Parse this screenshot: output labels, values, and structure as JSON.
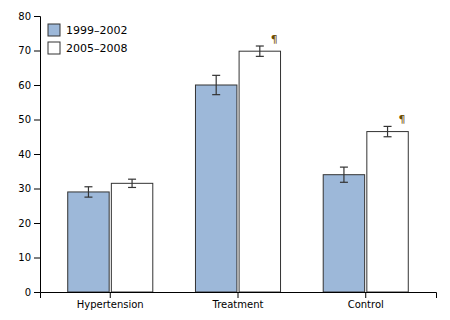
{
  "chart_data": {
    "type": "bar",
    "categories": [
      "Hypertension",
      "Treatment",
      "Control"
    ],
    "series": [
      {
        "name": "1999–2002",
        "color": "#9db8d9",
        "values": [
          29.0,
          60.0,
          34.0
        ],
        "errors": [
          1.5,
          2.8,
          2.2
        ]
      },
      {
        "name": "2005–2008",
        "color": "#ffffff",
        "values": [
          31.5,
          69.8,
          46.5
        ],
        "errors": [
          1.2,
          1.5,
          1.5
        ]
      }
    ],
    "annotations": [
      {
        "text": "¶",
        "category": "Treatment",
        "series": "2005–2008",
        "color": "#6b4c00"
      },
      {
        "text": "¶",
        "category": "Control",
        "series": "2005–2008",
        "color": "#6b4c00"
      }
    ],
    "ylim": [
      0,
      80
    ],
    "yticks": [
      0,
      10,
      20,
      30,
      40,
      50,
      60,
      70,
      80
    ],
    "legend": "upper left",
    "grid": false
  }
}
